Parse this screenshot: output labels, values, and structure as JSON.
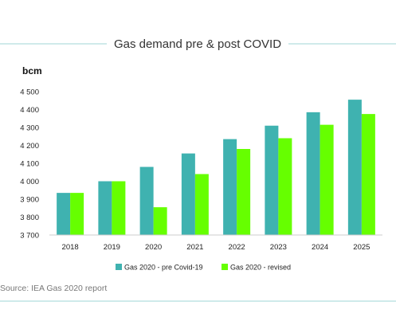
{
  "title": "Gas demand pre & post COVID",
  "source": "Source: IEA Gas 2020 report",
  "colors": {
    "rule": "#9fd4d4",
    "series_pre": "#3fb2b0",
    "series_revised": "#66ff00",
    "axis": "#cccccc"
  },
  "chart_data": {
    "type": "bar",
    "ylabel": "bcm",
    "ylim": [
      3700,
      4500
    ],
    "yticks": [
      3700,
      3800,
      3900,
      4000,
      4100,
      4200,
      4300,
      4400,
      4500
    ],
    "ytick_labels": [
      "3 700",
      "3 800",
      "3 900",
      "4 000",
      "4 100",
      "4 200",
      "4 300",
      "4 400",
      "4 500"
    ],
    "categories": [
      "2018",
      "2019",
      "2020",
      "2021",
      "2022",
      "2023",
      "2024",
      "2025"
    ],
    "series": [
      {
        "name": "Gas 2020 - pre Covid-19",
        "values": [
          3935,
          4000,
          4080,
          4155,
          4235,
          4310,
          4385,
          4455
        ]
      },
      {
        "name": "Gas 2020 - revised",
        "values": [
          3935,
          4000,
          3855,
          4040,
          4180,
          4240,
          4315,
          4375
        ]
      }
    ],
    "grid": false,
    "legend_position": "bottom"
  }
}
